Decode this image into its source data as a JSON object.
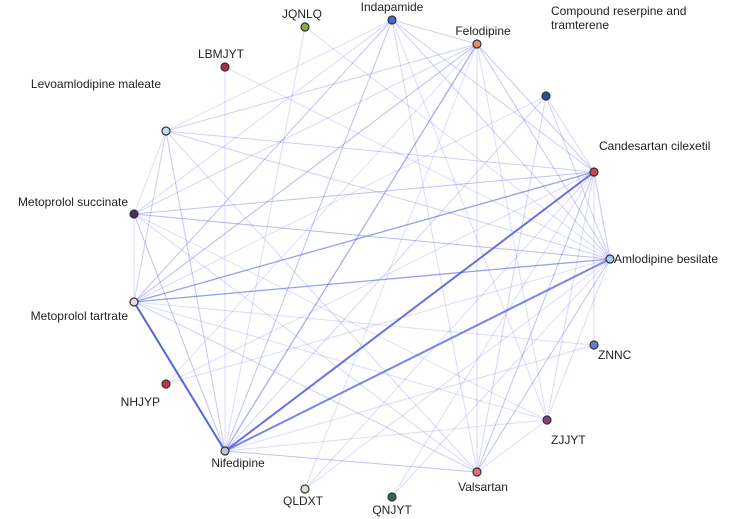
{
  "network": {
    "nodes": [
      {
        "id": "indapamide",
        "label": "Indapamide",
        "color": "#3a6fd0"
      },
      {
        "id": "felodipine",
        "label": "Felodipine",
        "color": "#e8925a"
      },
      {
        "id": "compound",
        "label": "Compound reserpine and\ntramterene",
        "color": "#2d4f8a"
      },
      {
        "id": "candesartan",
        "label": "Candesartan cilexetil",
        "color": "#d0463f"
      },
      {
        "id": "amlodipine",
        "label": "Amlodipine besilate",
        "color": "#a9c9e8"
      },
      {
        "id": "znnc",
        "label": "ZNNC",
        "color": "#5a86d0"
      },
      {
        "id": "zjjyt",
        "label": "ZJJYT",
        "color": "#8e3a8a"
      },
      {
        "id": "valsartan",
        "label": "Valsartan",
        "color": "#e86d7a"
      },
      {
        "id": "qnjyt",
        "label": "QNJYT",
        "color": "#2e6a4a"
      },
      {
        "id": "qldxt",
        "label": "QLDXT",
        "color": "#d8e6c8"
      },
      {
        "id": "nifedipine",
        "label": "Nifedipine",
        "color": "#b8c4d8"
      },
      {
        "id": "nhjyp",
        "label": "NHJYP",
        "color": "#c8304a"
      },
      {
        "id": "metoprolol_tartrate",
        "label": "Metoprolol tartrate",
        "color": "#e8d8e8"
      },
      {
        "id": "metoprolol_succinate",
        "label": "Metoprolol succinate",
        "color": "#4a2a6a"
      },
      {
        "id": "levoamlodipine",
        "label": "Levoamlodipine maleate",
        "color": "#c8ddf0"
      },
      {
        "id": "lbmjyt",
        "label": "LBMJYT",
        "color": "#b0284a"
      },
      {
        "id": "jqnlq",
        "label": "JQNLQ",
        "color": "#8aaa50"
      }
    ],
    "edges": [
      {
        "source": "metoprolol_tartrate",
        "target": "nifedipine",
        "weight": 1.0
      },
      {
        "source": "nifedipine",
        "target": "candesartan",
        "weight": 0.9
      },
      {
        "source": "nifedipine",
        "target": "amlodipine",
        "weight": 0.75
      },
      {
        "source": "metoprolol_tartrate",
        "target": "candesartan",
        "weight": 0.55
      },
      {
        "source": "metoprolol_tartrate",
        "target": "amlodipine",
        "weight": 0.55
      },
      {
        "source": "nifedipine",
        "target": "felodipine",
        "weight": 0.45
      },
      {
        "source": "metoprolol_tartrate",
        "target": "felodipine",
        "weight": 0.35
      },
      {
        "source": "metoprolol_succinate",
        "target": "amlodipine",
        "weight": 0.35
      },
      {
        "source": "metoprolol_succinate",
        "target": "candesartan",
        "weight": 0.3
      },
      {
        "source": "nifedipine",
        "target": "indapamide",
        "weight": 0.3
      },
      {
        "source": "metoprolol_tartrate",
        "target": "indapamide",
        "weight": 0.3
      },
      {
        "source": "valsartan",
        "target": "amlodipine",
        "weight": 0.3
      },
      {
        "source": "valsartan",
        "target": "candesartan",
        "weight": 0.3
      },
      {
        "source": "nifedipine",
        "target": "valsartan",
        "weight": 0.3
      },
      {
        "source": "metoprolol_succinate",
        "target": "nifedipine",
        "weight": 0.3
      },
      {
        "source": "levoamlodipine",
        "target": "nifedipine",
        "weight": 0.25
      },
      {
        "source": "felodipine",
        "target": "candesartan",
        "weight": 0.25
      },
      {
        "source": "felodipine",
        "target": "amlodipine",
        "weight": 0.25
      },
      {
        "source": "candesartan",
        "target": "amlodipine",
        "weight": 0.25
      },
      {
        "source": "metoprolol_tartrate",
        "target": "valsartan",
        "weight": 0.2
      },
      {
        "source": "levoamlodipine",
        "target": "amlodipine",
        "weight": 0.2
      },
      {
        "source": "levoamlodipine",
        "target": "candesartan",
        "weight": 0.2
      },
      {
        "source": "levoamlodipine",
        "target": "felodipine",
        "weight": 0.2
      },
      {
        "source": "levoamlodipine",
        "target": "metoprolol_tartrate",
        "weight": 0.2
      },
      {
        "source": "indapamide",
        "target": "felodipine",
        "weight": 0.2
      },
      {
        "source": "indapamide",
        "target": "amlodipine",
        "weight": 0.2
      },
      {
        "source": "indapamide",
        "target": "candesartan",
        "weight": 0.2
      },
      {
        "source": "compound",
        "target": "amlodipine",
        "weight": 0.2
      },
      {
        "source": "compound",
        "target": "nifedipine",
        "weight": 0.15
      },
      {
        "source": "compound",
        "target": "valsartan",
        "weight": 0.15
      },
      {
        "source": "znnc",
        "target": "candesartan",
        "weight": 0.12
      },
      {
        "source": "zjjyt",
        "target": "candesartan",
        "weight": 0.12
      },
      {
        "source": "zjjyt",
        "target": "amlodipine",
        "weight": 0.12
      },
      {
        "source": "valsartan",
        "target": "felodipine",
        "weight": 0.15
      },
      {
        "source": "valsartan",
        "target": "indapamide",
        "weight": 0.12
      },
      {
        "source": "metoprolol_succinate",
        "target": "felodipine",
        "weight": 0.15
      },
      {
        "source": "metoprolol_succinate",
        "target": "indapamide",
        "weight": 0.12
      },
      {
        "source": "metoprolol_succinate",
        "target": "valsartan",
        "weight": 0.12
      },
      {
        "source": "metoprolol_succinate",
        "target": "metoprolol_tartrate",
        "weight": 0.12
      },
      {
        "source": "nhjyp",
        "target": "candesartan",
        "weight": 0.1
      },
      {
        "source": "nhjyp",
        "target": "amlodipine",
        "weight": 0.1
      },
      {
        "source": "qldxt",
        "target": "candesartan",
        "weight": 0.1
      },
      {
        "source": "qldxt",
        "target": "amlodipine",
        "weight": 0.1
      },
      {
        "source": "qnjyt",
        "target": "amlodipine",
        "weight": 0.1
      },
      {
        "source": "qnjyt",
        "target": "candesartan",
        "weight": 0.1
      },
      {
        "source": "lbmjyt",
        "target": "nifedipine",
        "weight": 0.1
      },
      {
        "source": "lbmjyt",
        "target": "amlodipine",
        "weight": 0.1
      },
      {
        "source": "jqnlq",
        "target": "amlodipine",
        "weight": 0.1
      },
      {
        "source": "jqnlq",
        "target": "nifedipine",
        "weight": 0.1
      },
      {
        "source": "levoamlodipine",
        "target": "valsartan",
        "weight": 0.12
      },
      {
        "source": "levoamlodipine",
        "target": "metoprolol_succinate",
        "weight": 0.1
      },
      {
        "source": "levoamlodipine",
        "target": "indapamide",
        "weight": 0.1
      },
      {
        "source": "nifedipine",
        "target": "zjjyt",
        "weight": 0.1
      },
      {
        "source": "nifedipine",
        "target": "znnc",
        "weight": 0.1
      },
      {
        "source": "metoprolol_tartrate",
        "target": "zjjyt",
        "weight": 0.1
      },
      {
        "source": "metoprolol_tartrate",
        "target": "znnc",
        "weight": 0.1
      },
      {
        "source": "compound",
        "target": "metoprolol_tartrate",
        "weight": 0.1
      },
      {
        "source": "compound",
        "target": "candesartan",
        "weight": 0.12
      },
      {
        "source": "valsartan",
        "target": "zjjyt",
        "weight": 0.1
      },
      {
        "source": "felodipine",
        "target": "zjjyt",
        "weight": 0.1
      },
      {
        "source": "indapamide",
        "target": "zjjyt",
        "weight": 0.1
      },
      {
        "source": "nhjyp",
        "target": "felodipine",
        "weight": 0.08
      },
      {
        "source": "qldxt",
        "target": "felodipine",
        "weight": 0.08
      },
      {
        "source": "metoprolol_succinate",
        "target": "zjjyt",
        "weight": 0.08
      }
    ]
  }
}
